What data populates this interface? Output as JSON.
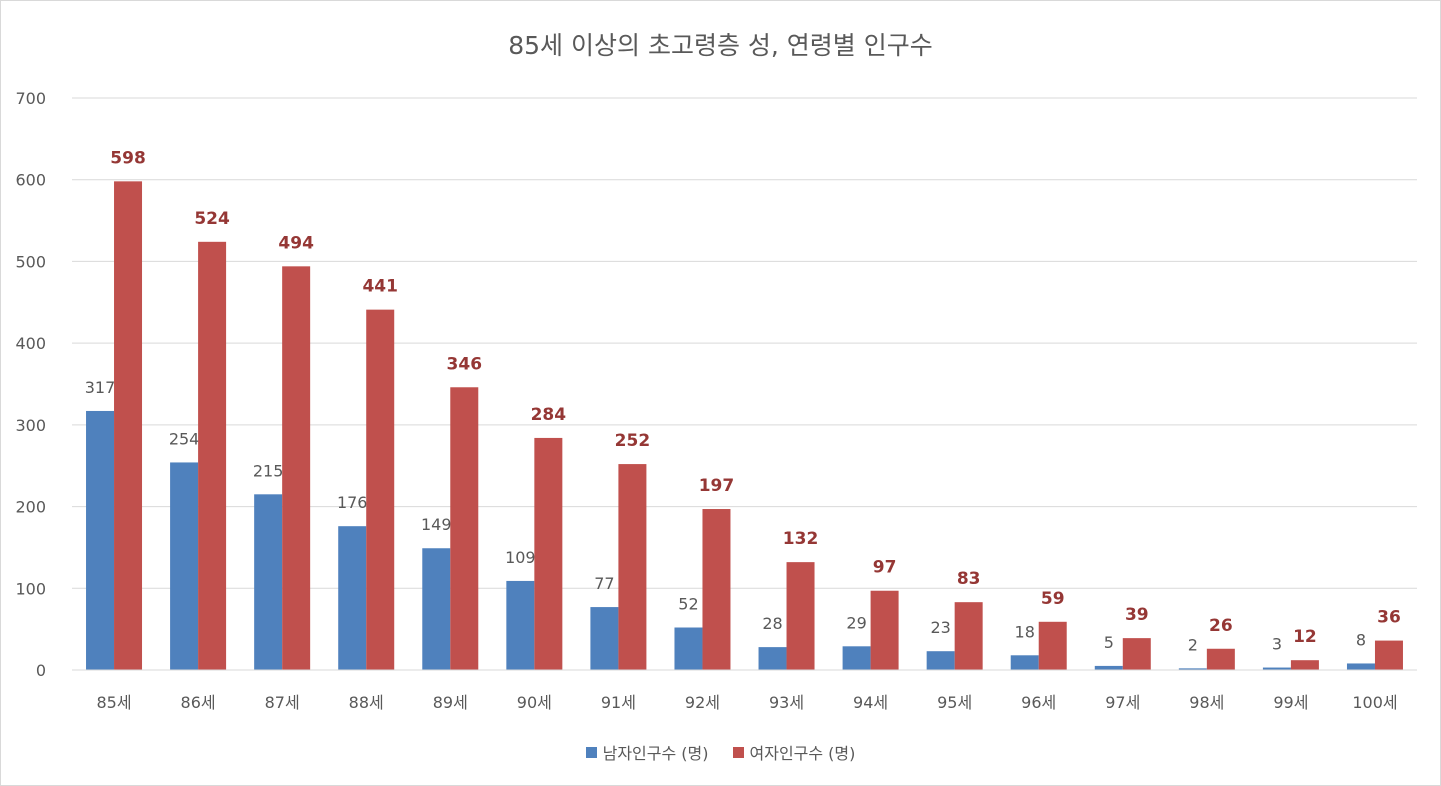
{
  "chart_data": {
    "type": "bar",
    "title": "85세 이상의 초고령층 성, 연령별 인구수",
    "categories": [
      "85세",
      "86세",
      "87세",
      "88세",
      "89세",
      "90세",
      "91세",
      "92세",
      "93세",
      "94세",
      "95세",
      "96세",
      "97세",
      "98세",
      "99세",
      "100세"
    ],
    "series": [
      {
        "name": "남자인구수 (명)",
        "color": "#4f81bd",
        "values": [
          317,
          254,
          215,
          176,
          149,
          109,
          77,
          52,
          28,
          29,
          23,
          18,
          5,
          2,
          3,
          8
        ]
      },
      {
        "name": "여자인구수 (명)",
        "color": "#c0504d",
        "values": [
          598,
          524,
          494,
          441,
          346,
          284,
          252,
          197,
          132,
          97,
          83,
          59,
          39,
          26,
          12,
          36
        ]
      }
    ],
    "ylim": [
      0,
      700
    ],
    "yticks": [
      0,
      100,
      200,
      300,
      400,
      500,
      600,
      700
    ],
    "grid": true,
    "legend": "bottom",
    "colors": {
      "gridline": "#d9d9d9",
      "axis_text": "#595959",
      "female_label": "#953735"
    }
  }
}
